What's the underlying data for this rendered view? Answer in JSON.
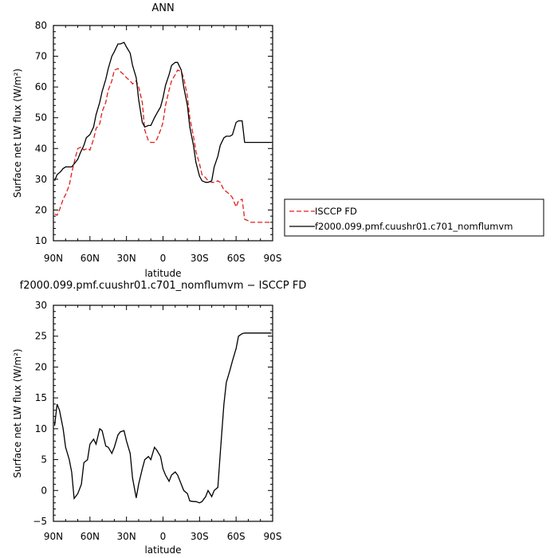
{
  "chart_data": [
    {
      "type": "line",
      "title": "ANN",
      "xlabel": "latitude",
      "ylabel": "Surface net LW flux (W/m²)",
      "xlim": [
        90,
        -90
      ],
      "ylim": [
        10,
        80
      ],
      "x_ticks": [
        "90N",
        "60N",
        "30N",
        "0",
        "30S",
        "60S",
        "90S"
      ],
      "y_ticks": [
        "10",
        "20",
        "30",
        "40",
        "50",
        "60",
        "70",
        "80"
      ],
      "legend": "right",
      "series": [
        {
          "name": "ISCCP FD",
          "color": "#e0201c",
          "dash": "dashed",
          "x": [
            89,
            87,
            85,
            82,
            80,
            77,
            75,
            72,
            70,
            67,
            65,
            62,
            60,
            57,
            55,
            52,
            50,
            47,
            45,
            42,
            40,
            37,
            35,
            32,
            30,
            27,
            25,
            22,
            20,
            17,
            15,
            12,
            10,
            7,
            5,
            2,
            0,
            -2,
            -5,
            -7,
            -10,
            -12,
            -15,
            -17,
            -20,
            -22,
            -25,
            -27,
            -30,
            -32,
            -35,
            -37,
            -40,
            -42,
            -45,
            -47,
            -50,
            -52,
            -55,
            -57,
            -60,
            -62,
            -65,
            -67,
            -70,
            -72,
            -75,
            -77,
            -80,
            -82,
            -85,
            -87,
            -89
          ],
          "y": [
            18.7,
            18.3,
            20.0,
            23.5,
            25.0,
            28.0,
            32.0,
            37.0,
            40.0,
            40.5,
            39.5,
            40.0,
            39.5,
            43.0,
            46.5,
            48.0,
            52.0,
            55.0,
            59.0,
            62.0,
            65.5,
            66.0,
            65.0,
            64.0,
            63.0,
            62.0,
            61.0,
            62.0,
            60.0,
            55.0,
            46.0,
            42.5,
            42.0,
            42.0,
            43.0,
            46.0,
            48.5,
            54.0,
            59.0,
            62.0,
            64.0,
            65.5,
            65.0,
            63.0,
            57.0,
            50.0,
            44.0,
            39.0,
            35.0,
            31.5,
            30.5,
            29.5,
            29.0,
            29.0,
            29.5,
            29.0,
            26.5,
            26.0,
            25.0,
            24.0,
            21.0,
            23.0,
            23.5,
            17.0,
            16.5,
            16.0,
            16.0,
            16.0,
            16.0,
            16.0,
            16.0,
            16.0,
            16.0
          ]
        },
        {
          "name": "f2000.099.pmf.cuushr01.c701_nomflumvm",
          "color": "#000000",
          "dash": "solid",
          "x": [
            89,
            87,
            84,
            82,
            80,
            77,
            75,
            73,
            70,
            68,
            65,
            63,
            60,
            57,
            55,
            52,
            50,
            47,
            45,
            42,
            40,
            37,
            35,
            32,
            30,
            27,
            25,
            22,
            20,
            17,
            15,
            12,
            10,
            7,
            5,
            2,
            0,
            -2,
            -5,
            -7,
            -10,
            -12,
            -15,
            -17,
            -20,
            -22,
            -25,
            -27,
            -30,
            -32,
            -35,
            -37,
            -40,
            -42,
            -45,
            -47,
            -50,
            -52,
            -55,
            -57,
            -60,
            -62,
            -65,
            -67,
            -70,
            -72,
            -75,
            -77,
            -80,
            -82,
            -85,
            -87,
            -89
          ],
          "y": [
            29.5,
            31.5,
            32.5,
            33.5,
            34.0,
            34.0,
            34.0,
            35.0,
            36.5,
            38.5,
            41.0,
            43.5,
            44.5,
            47.0,
            51.0,
            55.0,
            58.5,
            62.5,
            66.0,
            70.0,
            71.5,
            74.0,
            74.0,
            74.5,
            73.0,
            71.0,
            67.0,
            63.0,
            56.0,
            48.5,
            47.0,
            47.5,
            47.5,
            50.0,
            51.5,
            53.5,
            56.5,
            60.5,
            64.0,
            67.0,
            68.0,
            68.0,
            65.5,
            60.0,
            54.0,
            47.0,
            41.0,
            35.5,
            31.0,
            29.5,
            29.0,
            29.0,
            29.5,
            34.0,
            37.5,
            41.0,
            43.5,
            44.0,
            44.0,
            44.5,
            48.5,
            49.0,
            49.0,
            42.0,
            42.0,
            42.0,
            42.0,
            42.0,
            42.0,
            42.0,
            42.0,
            42.0,
            42.0
          ]
        }
      ]
    },
    {
      "type": "line",
      "title": "f2000.099.pmf.cuushr01.c701_nomflumvm − ISCCP FD",
      "xlabel": "latitude",
      "ylabel": "Surface net LW flux (W/m²)",
      "xlim": [
        90,
        -90
      ],
      "ylim": [
        -5,
        30
      ],
      "x_ticks": [
        "90N",
        "60N",
        "30N",
        "0",
        "30S",
        "60S",
        "90S"
      ],
      "y_ticks": [
        "−5",
        "0",
        "5",
        "10",
        "15",
        "20",
        "25",
        "30"
      ],
      "series": [
        {
          "color": "#000000",
          "dash": "solid",
          "x": [
            89,
            87,
            85,
            82,
            80,
            77,
            75,
            73,
            70,
            67,
            65,
            62,
            60,
            57,
            55,
            52,
            50,
            47,
            45,
            42,
            40,
            37,
            35,
            32,
            30,
            27,
            25,
            22,
            20,
            17,
            15,
            12,
            10,
            7,
            5,
            2,
            0,
            -2,
            -5,
            -7,
            -10,
            -12,
            -15,
            -17,
            -20,
            -22,
            -25,
            -27,
            -30,
            -32,
            -35,
            -37,
            -40,
            -42,
            -45,
            -47,
            -50,
            -52,
            -55,
            -57,
            -60,
            -62,
            -65,
            -67,
            -70,
            -72,
            -75,
            -77,
            -80,
            -82,
            -85,
            -87,
            -89
          ],
          "y": [
            10.5,
            14.0,
            13.0,
            10.0,
            7.0,
            5.0,
            3.0,
            -1.3,
            -0.5,
            1.0,
            4.5,
            5.0,
            7.5,
            8.3,
            7.5,
            10.0,
            9.7,
            7.2,
            7.0,
            6.0,
            7.0,
            9.0,
            9.5,
            9.7,
            8.0,
            6.0,
            2.0,
            -1.2,
            1.0,
            3.5,
            5.0,
            5.5,
            5.0,
            7.0,
            6.5,
            5.5,
            3.5,
            2.5,
            1.5,
            2.5,
            3.0,
            2.5,
            1.0,
            0.0,
            -0.5,
            -1.7,
            -1.8,
            -1.8,
            -2.0,
            -1.8,
            -1.0,
            0.0,
            -1.0,
            0.0,
            0.5,
            6.0,
            14.0,
            17.5,
            19.5,
            21.0,
            23.0,
            25.0,
            25.4,
            25.5,
            25.5,
            25.5,
            25.5,
            25.5,
            25.5,
            25.5,
            25.5,
            25.5,
            25.5
          ]
        }
      ]
    }
  ]
}
